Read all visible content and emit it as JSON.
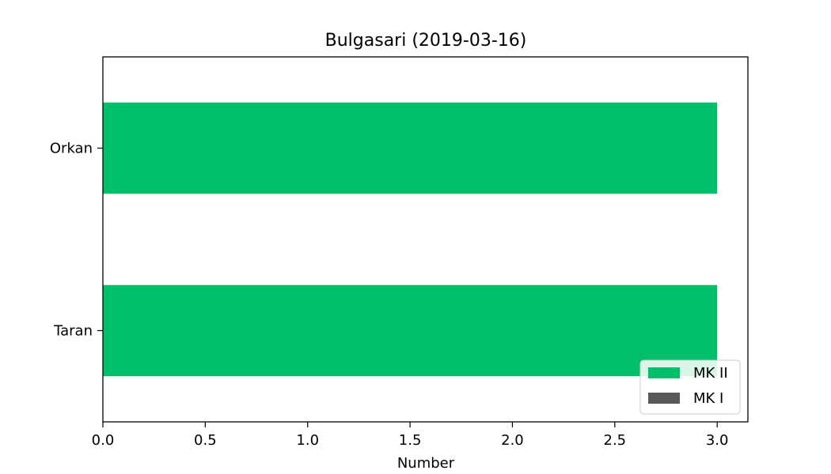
{
  "chart_data": {
    "type": "bar",
    "orientation": "horizontal",
    "title": "Bulgasari (2019-03-16)",
    "xlabel": "Number",
    "ylabel": "",
    "categories": [
      "Taran",
      "Orkan"
    ],
    "series": [
      {
        "name": "MK II",
        "values": [
          3,
          3
        ],
        "color": "#00bf6b"
      },
      {
        "name": "MK I",
        "values": [
          0,
          0
        ],
        "color": "#595959"
      }
    ],
    "xlim": [
      0,
      3.15
    ],
    "xticks": [
      "0.0",
      "0.5",
      "1.0",
      "1.5",
      "2.0",
      "2.5",
      "3.0"
    ],
    "grid": false,
    "legend_position": "bottom-right"
  }
}
